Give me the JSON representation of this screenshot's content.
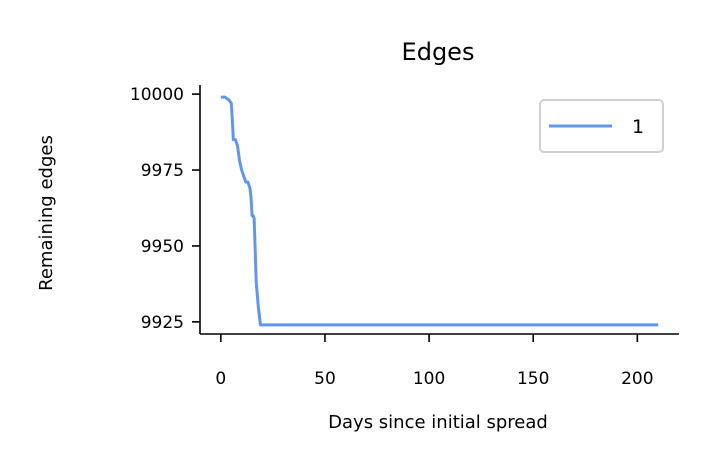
{
  "chart_data": {
    "type": "line",
    "title": "Edges",
    "xlabel": "Days since initial spread",
    "ylabel": "Remaining edges",
    "xlim": [
      -10,
      220
    ],
    "ylim": [
      9921,
      10003
    ],
    "xticks": [
      0,
      50,
      100,
      150,
      200
    ],
    "yticks": [
      9925,
      9950,
      9975,
      10000
    ],
    "legend_position": "top-right",
    "grid": false,
    "series": [
      {
        "name": "1",
        "color": "#6495ED",
        "x": [
          0,
          2,
          4,
          5,
          5.5,
          6,
          7,
          8,
          9,
          10,
          11,
          12,
          13,
          14,
          14.5,
          15,
          15.5,
          16,
          17,
          18,
          19,
          210
        ],
        "y": [
          9999,
          9999,
          9998,
          9997,
          9992,
          9985,
          9985,
          9983,
          9978,
          9975,
          9973,
          9971,
          9971,
          9969,
          9966,
          9960,
          9960,
          9959,
          9938,
          9930,
          9924,
          9924
        ]
      }
    ]
  }
}
